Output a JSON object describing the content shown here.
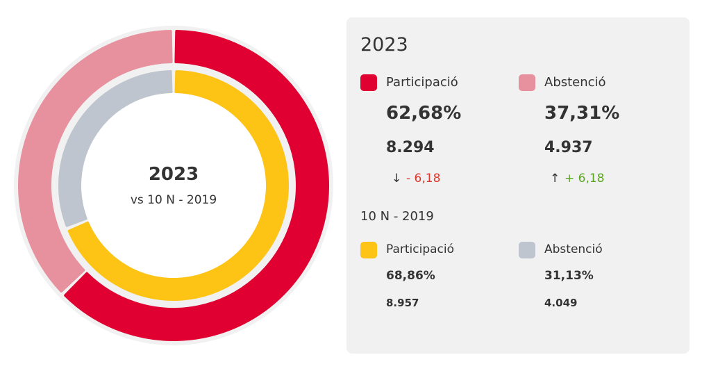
{
  "chart_data": {
    "type": "pie",
    "center_title": "2023",
    "center_subtitle": "vs 10 N - 2019",
    "rings": [
      {
        "ring": "outer",
        "name": "2023",
        "slices": [
          {
            "label": "Participació",
            "value": 62.68,
            "color": "#e00031"
          },
          {
            "label": "Abstenció",
            "value": 37.31,
            "color": "#e8919e"
          }
        ]
      },
      {
        "ring": "inner",
        "name": "10 N - 2019",
        "slices": [
          {
            "label": "Participació",
            "value": 68.86,
            "color": "#fdc315"
          },
          {
            "label": "Abstenció",
            "value": 31.13,
            "color": "#bec5cf"
          }
        ]
      }
    ]
  },
  "panel": {
    "current": {
      "title": "2023",
      "items": [
        {
          "label": "Participació",
          "color": "#e00031",
          "pct": "62,68%",
          "count": "8.294",
          "arrow": "↓",
          "delta": "- 6,18",
          "delta_color": "#e2342b"
        },
        {
          "label": "Abstenció",
          "color": "#e8919e",
          "pct": "37,31%",
          "count": "4.937",
          "arrow": "↑",
          "delta": "+ 6,18",
          "delta_color": "#5aa621"
        }
      ]
    },
    "previous": {
      "title": "10 N - 2019",
      "items": [
        {
          "label": "Participació",
          "color": "#fdc315",
          "pct": "68,86%",
          "count": "8.957"
        },
        {
          "label": "Abstenció",
          "color": "#bec5cf",
          "pct": "31,13%",
          "count": "4.049"
        }
      ]
    }
  }
}
